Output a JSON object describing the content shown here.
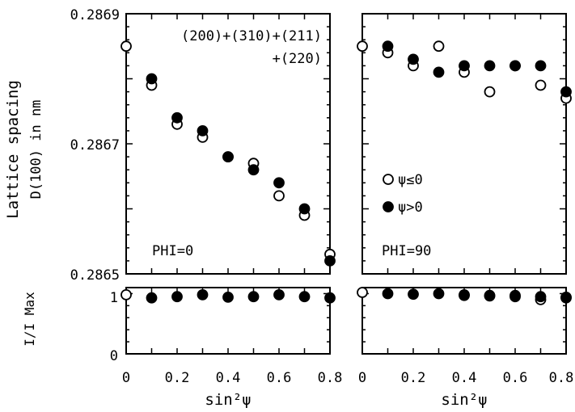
{
  "chart_data": {
    "type": "scatter",
    "y_axis_label_line1": "Lattice spacing",
    "y_axis_label_line2": "D(100) in nm",
    "y_axis_label_bottom": "I/I Max",
    "x_axis_label": "sin²ψ",
    "reflections_line1": "(200)+(310)+(211)",
    "reflections_line2": "+(220)",
    "ylim_top": [
      0.2865,
      0.2869
    ],
    "ylim_bottom": [
      0,
      1.1
    ],
    "xlim": [
      0,
      0.8
    ],
    "x_ticks": [
      "0",
      "0.2",
      "0.4",
      "0.6",
      "0.8"
    ],
    "y_ticks_top": [
      "0.2869",
      "0.2867",
      "0.2865"
    ],
    "y_ticks_bottom": [
      "1",
      "0"
    ],
    "legend": {
      "open": "ψ≤0",
      "filled": "ψ>0",
      "placement": "right-middle of right panel"
    },
    "series_names": [
      "ψ≤0",
      "ψ>0"
    ],
    "panels": [
      {
        "label": "PHI=0",
        "x": [
          0,
          0.1,
          0.2,
          0.3,
          0.4,
          0.5,
          0.6,
          0.7,
          0.8
        ],
        "d_open": [
          0.28685,
          0.28679,
          0.28673,
          0.28671,
          0.28668,
          0.28667,
          0.28662,
          0.28659,
          0.28653
        ],
        "d_filled": [
          null,
          0.2868,
          0.28674,
          0.28672,
          0.28668,
          0.28666,
          0.28664,
          0.2866,
          0.28652
        ],
        "i_open": [
          0.98,
          null,
          null,
          null,
          null,
          null,
          null,
          null,
          null
        ],
        "i_filled": [
          null,
          0.93,
          0.95,
          0.98,
          0.94,
          0.95,
          0.98,
          0.95,
          0.93
        ]
      },
      {
        "label": "PHI=90",
        "x": [
          0,
          0.1,
          0.2,
          0.3,
          0.4,
          0.5,
          0.6,
          0.7,
          0.8
        ],
        "d_open": [
          0.28685,
          0.28684,
          0.28682,
          0.28685,
          0.28681,
          0.28678,
          0.28682,
          0.28679,
          0.28677
        ],
        "d_filled": [
          null,
          0.28685,
          0.28683,
          0.28681,
          0.28682,
          0.28682,
          0.28682,
          0.28682,
          0.28678
        ],
        "i_open": [
          1.02,
          null,
          null,
          null,
          0.97,
          0.96,
          0.95,
          0.9,
          0.94
        ],
        "i_filled": [
          null,
          1.0,
          0.99,
          1.0,
          0.98,
          0.97,
          0.97,
          0.95,
          0.93
        ]
      }
    ],
    "grid": false
  }
}
